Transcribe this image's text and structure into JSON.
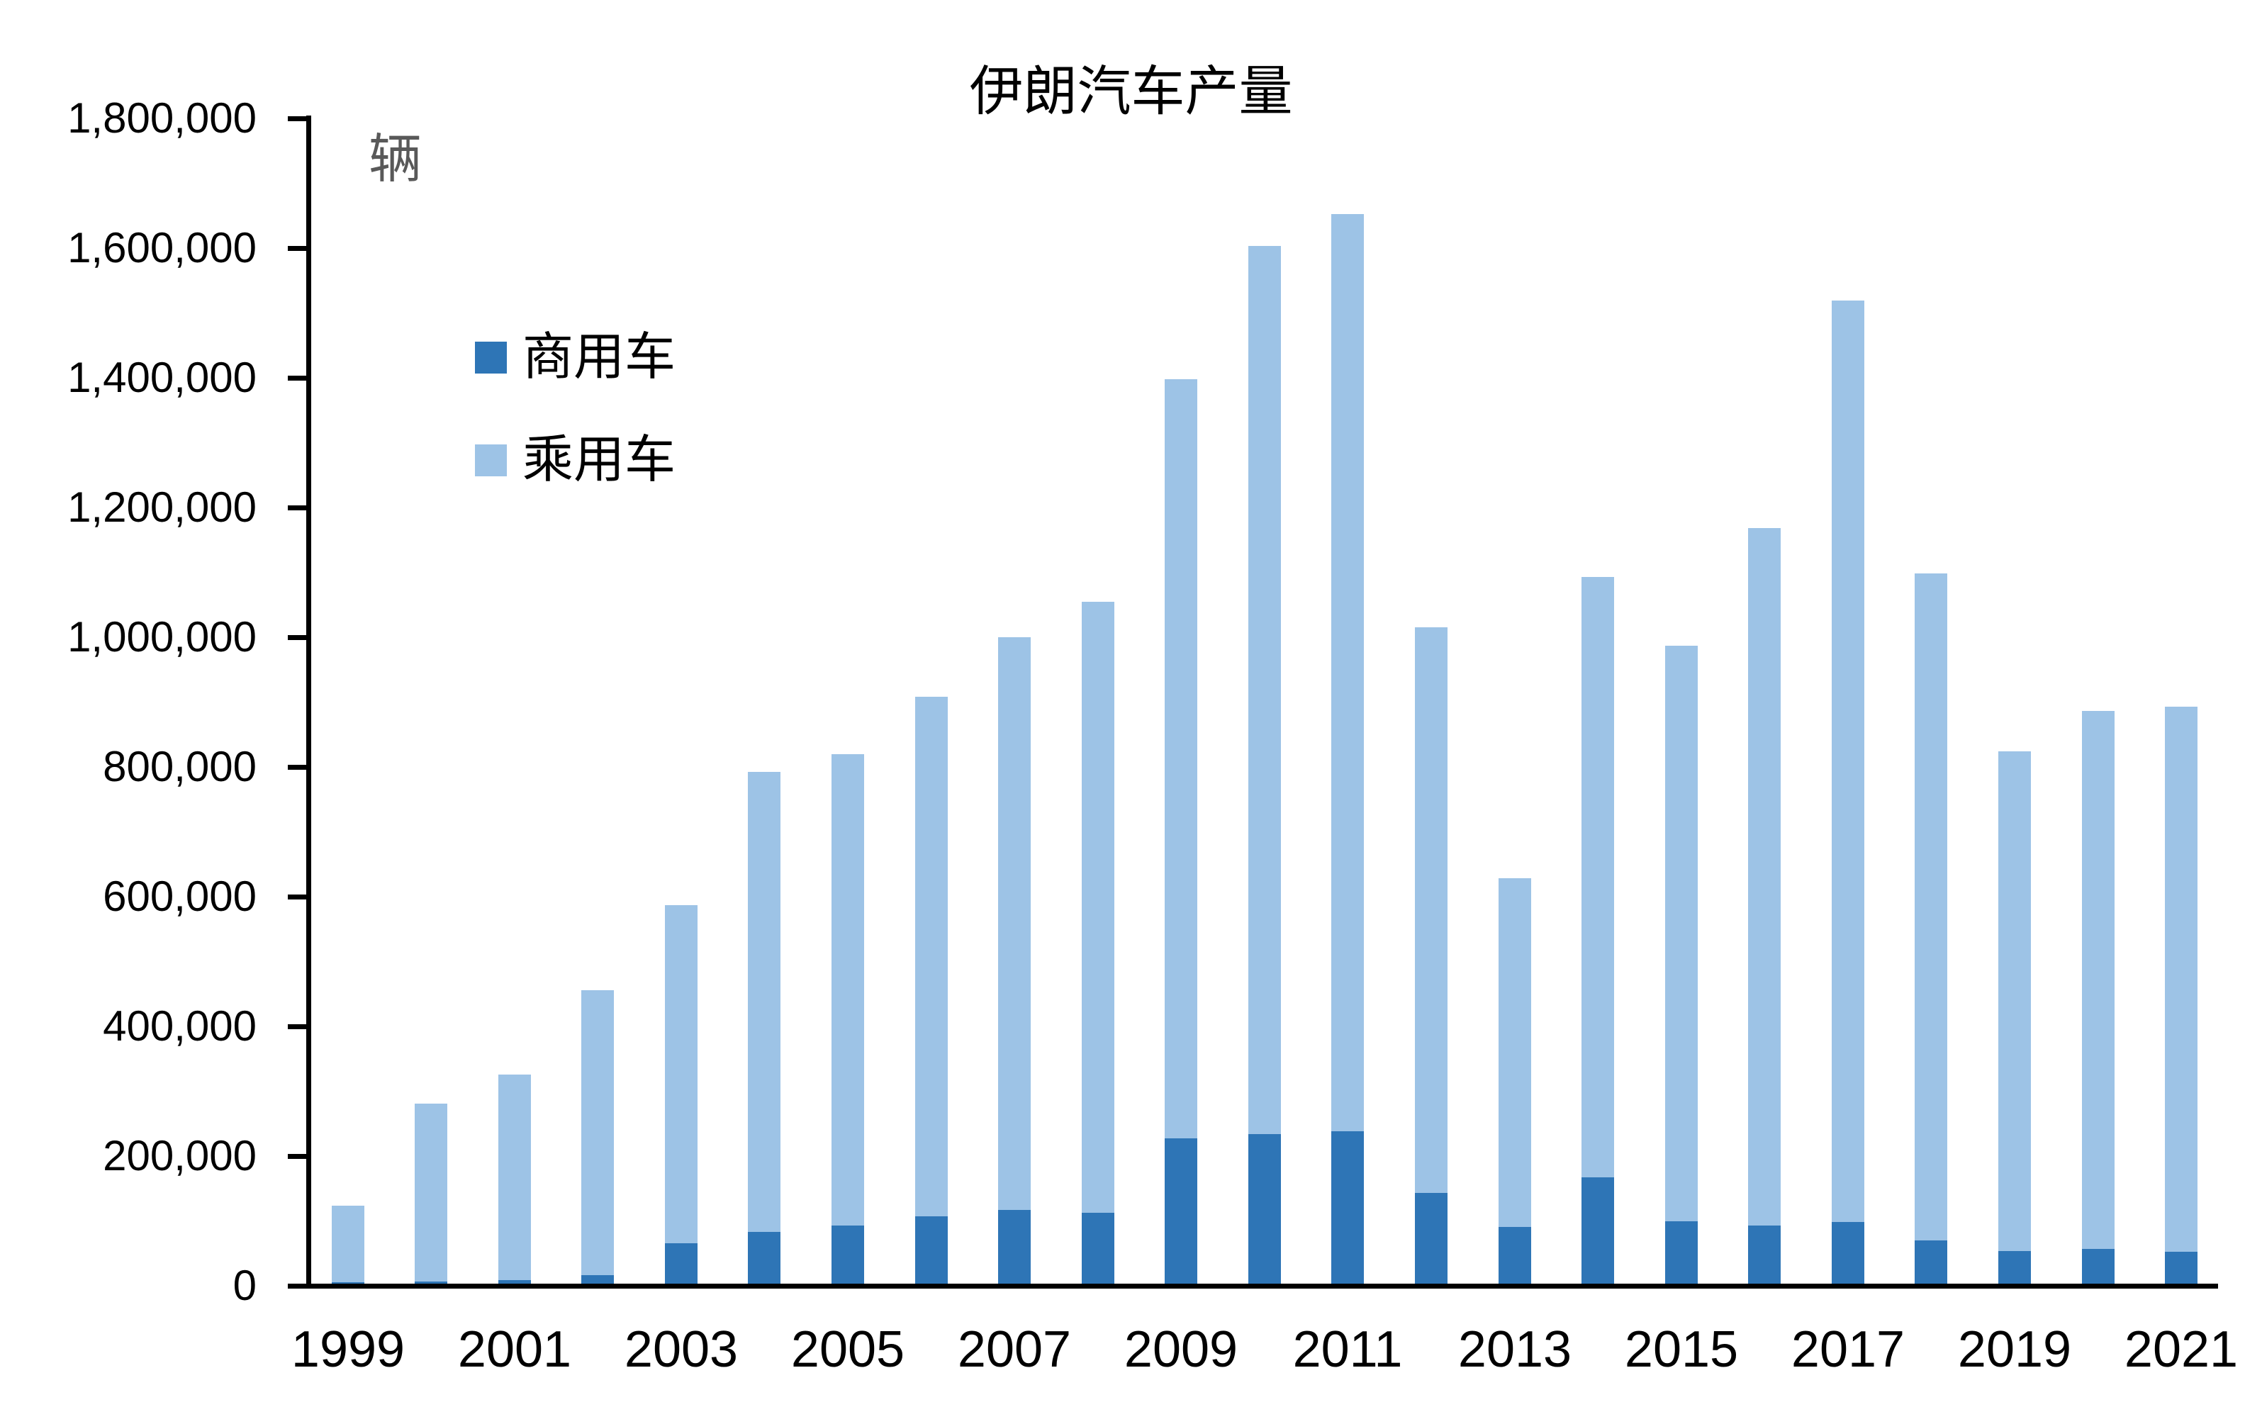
{
  "chart_data": {
    "type": "bar",
    "stacked": true,
    "title": "伊朗汽车产量",
    "unit_label": "辆",
    "unit_label_color": "#595959",
    "axis_color": "#000000",
    "background_color": "#ffffff",
    "grid": false,
    "legend_position": "upper-left-inside",
    "categories": [
      1999,
      2000,
      2001,
      2002,
      2003,
      2004,
      2005,
      2006,
      2007,
      2008,
      2009,
      2010,
      2011,
      2012,
      2013,
      2014,
      2015,
      2016,
      2017,
      2018,
      2019,
      2020,
      2021
    ],
    "x_tick_labels": [
      "1999",
      "2001",
      "2003",
      "2005",
      "2007",
      "2009",
      "2011",
      "2013",
      "2015",
      "2017",
      "2019",
      "2021"
    ],
    "series": [
      {
        "name": "商用车",
        "color": "#2E75B6",
        "values": [
          2000,
          3000,
          5000,
          13000,
          62000,
          80000,
          90000,
          104000,
          114000,
          109000,
          224000,
          231000,
          235000,
          140000,
          87000,
          164000,
          96000,
          90000,
          95000,
          67000,
          50000,
          54000,
          49000
        ]
      },
      {
        "name": "乘用车",
        "color": "#9DC3E6",
        "values": [
          118000,
          274000,
          317000,
          439000,
          521000,
          709000,
          727000,
          801000,
          883000,
          942000,
          1171000,
          1369000,
          1414000,
          872000,
          538000,
          926000,
          887000,
          1075000,
          1421000,
          1028000,
          771000,
          830000,
          840000
        ]
      }
    ],
    "stack_totals": [
      120000,
      277000,
      322000,
      452000,
      583000,
      789000,
      817000,
      905000,
      997000,
      1051000,
      1395000,
      1600000,
      1649000,
      1012000,
      625000,
      1090000,
      983000,
      1165000,
      1516000,
      1095000,
      821000,
      884000,
      889000
    ],
    "ylim": [
      0,
      1800000
    ],
    "ytick_interval": 200000,
    "ytick_labels": [
      "0",
      "200,000",
      "400,000",
      "600,000",
      "800,000",
      "1,000,000",
      "1,200,000",
      "1,400,000",
      "1,600,000",
      "1,800,000"
    ]
  }
}
